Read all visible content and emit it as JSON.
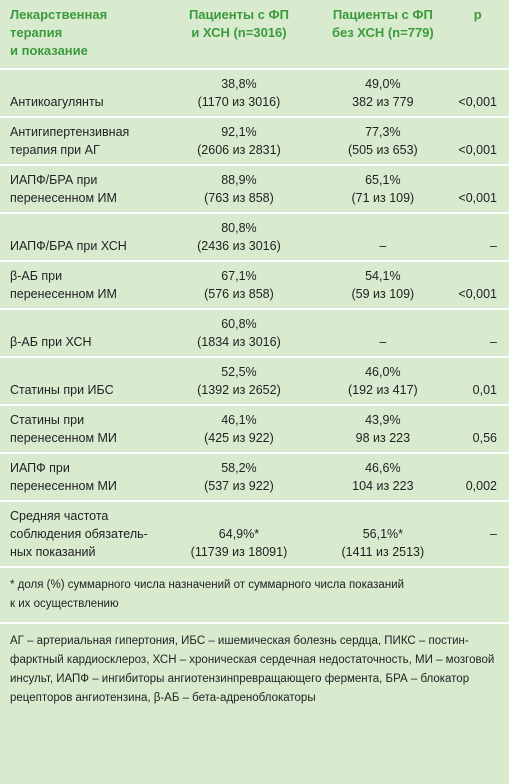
{
  "table": {
    "header": [
      "Лекарственная\nтерапия\nи показание",
      "Пациенты с ФП\nи ХСН (n=3016)",
      "Пациенты с ФП\nбез ХСН (n=779)",
      "р"
    ],
    "rows": [
      [
        "Антикоагулянты",
        "38,8%\n(1170 из 3016)",
        "49,0%\n382 из 779",
        "<0,001"
      ],
      [
        "Антигипертензивная\nтерапия при АГ",
        "92,1%\n(2606 из 2831)",
        "77,3%\n(505 из 653)",
        "<0,001"
      ],
      [
        "ИАПФ/БРА при\nперенесенном ИМ",
        "88,9%\n(763 из 858)",
        "65,1%\n(71 из 109)",
        "<0,001"
      ],
      [
        "ИАПФ/БРА при ХСН",
        "80,8%\n(2436 из 3016)",
        "–",
        "–"
      ],
      [
        "β-АБ при\nперенесенном ИМ",
        "67,1%\n(576 из 858)",
        "54,1%\n(59 из 109)",
        "<0,001"
      ],
      [
        "β-АБ при ХСН",
        "60,8%\n(1834 из 3016)",
        "–",
        "–"
      ],
      [
        "Статины при ИБС",
        "52,5%\n(1392 из 2652)",
        "46,0%\n(192 из 417)",
        "0,01"
      ],
      [
        "Статины при\nперенесенном МИ",
        "46,1%\n(425 из 922)",
        "43,9%\n98 из 223",
        "0,56"
      ],
      [
        "ИАПФ при\nперенесенном МИ",
        "58,2%\n(537 из 922)",
        "46,6%\n104 из 223",
        "0,002"
      ],
      [
        "Средняя частота\nсоблюдения обязатель-\nных показаний",
        "64,9%*\n(11739 из 18091)",
        "56,1%*\n(1411 из 2513)",
        "–"
      ]
    ]
  },
  "footnote": "* доля (%) суммарного числа назначений от суммарного числа показаний\nк их осуществлению",
  "abbreviations": "АГ – артериальная гипертония, ИБС – ишемическая болезнь сердца, ПИКС – постин-\nфарктный кардиосклероз, ХСН – хроническая сердечная недостаточность, МИ – мозговой\nинсульт, ИАПФ – ингибиторы ангиотензинпревращающего фермента, БРА – блокатор\nрецепторов ангиотензина, β-АБ – бета-адреноблокаторы"
}
